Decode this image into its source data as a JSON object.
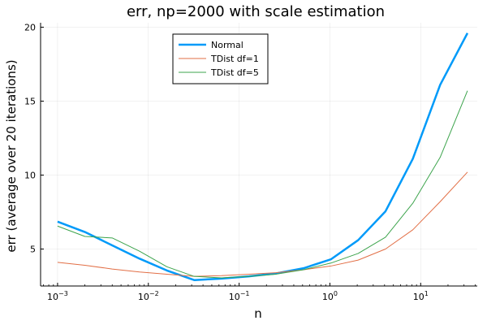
{
  "chart_data": {
    "type": "line",
    "title": "err, np=2000 with scale estimation",
    "xlabel": "n",
    "ylabel": "err (average over 20 iterations)",
    "xscale": "log10",
    "xlim": [
      0.00065,
      42
    ],
    "ylim": [
      2.5,
      20.3
    ],
    "grid": true,
    "legend_position": "top-center",
    "x": [
      0.001,
      0.002,
      0.004,
      0.008,
      0.016,
      0.032,
      0.064,
      0.128,
      0.256,
      0.512,
      1.024,
      2.048,
      4.096,
      8.192,
      16.384,
      32.768
    ],
    "x_ticks": [
      {
        "value": 0.001,
        "base": "10",
        "exp": "−3"
      },
      {
        "value": 0.01,
        "base": "10",
        "exp": "−2"
      },
      {
        "value": 0.1,
        "base": "10",
        "exp": "−1"
      },
      {
        "value": 1,
        "base": "10",
        "exp": "0"
      },
      {
        "value": 10,
        "base": "10",
        "exp": "1"
      }
    ],
    "y_ticks": [
      5,
      10,
      15,
      20
    ],
    "series": [
      {
        "name": "Normal",
        "color": "#009af9",
        "width": 2.5,
        "values": [
          6.85,
          6.15,
          5.25,
          4.35,
          3.55,
          2.9,
          3.0,
          3.15,
          3.35,
          3.7,
          4.3,
          5.6,
          7.55,
          11.1,
          16.1,
          19.6
        ]
      },
      {
        "name": "TDist df=1",
        "color": "#e26f46",
        "width": 1,
        "values": [
          4.1,
          3.9,
          3.65,
          3.45,
          3.3,
          3.15,
          3.2,
          3.3,
          3.4,
          3.6,
          3.85,
          4.25,
          5.0,
          6.3,
          8.2,
          10.2
        ]
      },
      {
        "name": "TDist df=5",
        "color": "#3da44d",
        "width": 1,
        "values": [
          6.55,
          5.85,
          5.75,
          4.85,
          3.8,
          3.15,
          3.05,
          3.15,
          3.3,
          3.6,
          4.05,
          4.7,
          5.8,
          8.1,
          11.2,
          15.7
        ]
      }
    ]
  }
}
